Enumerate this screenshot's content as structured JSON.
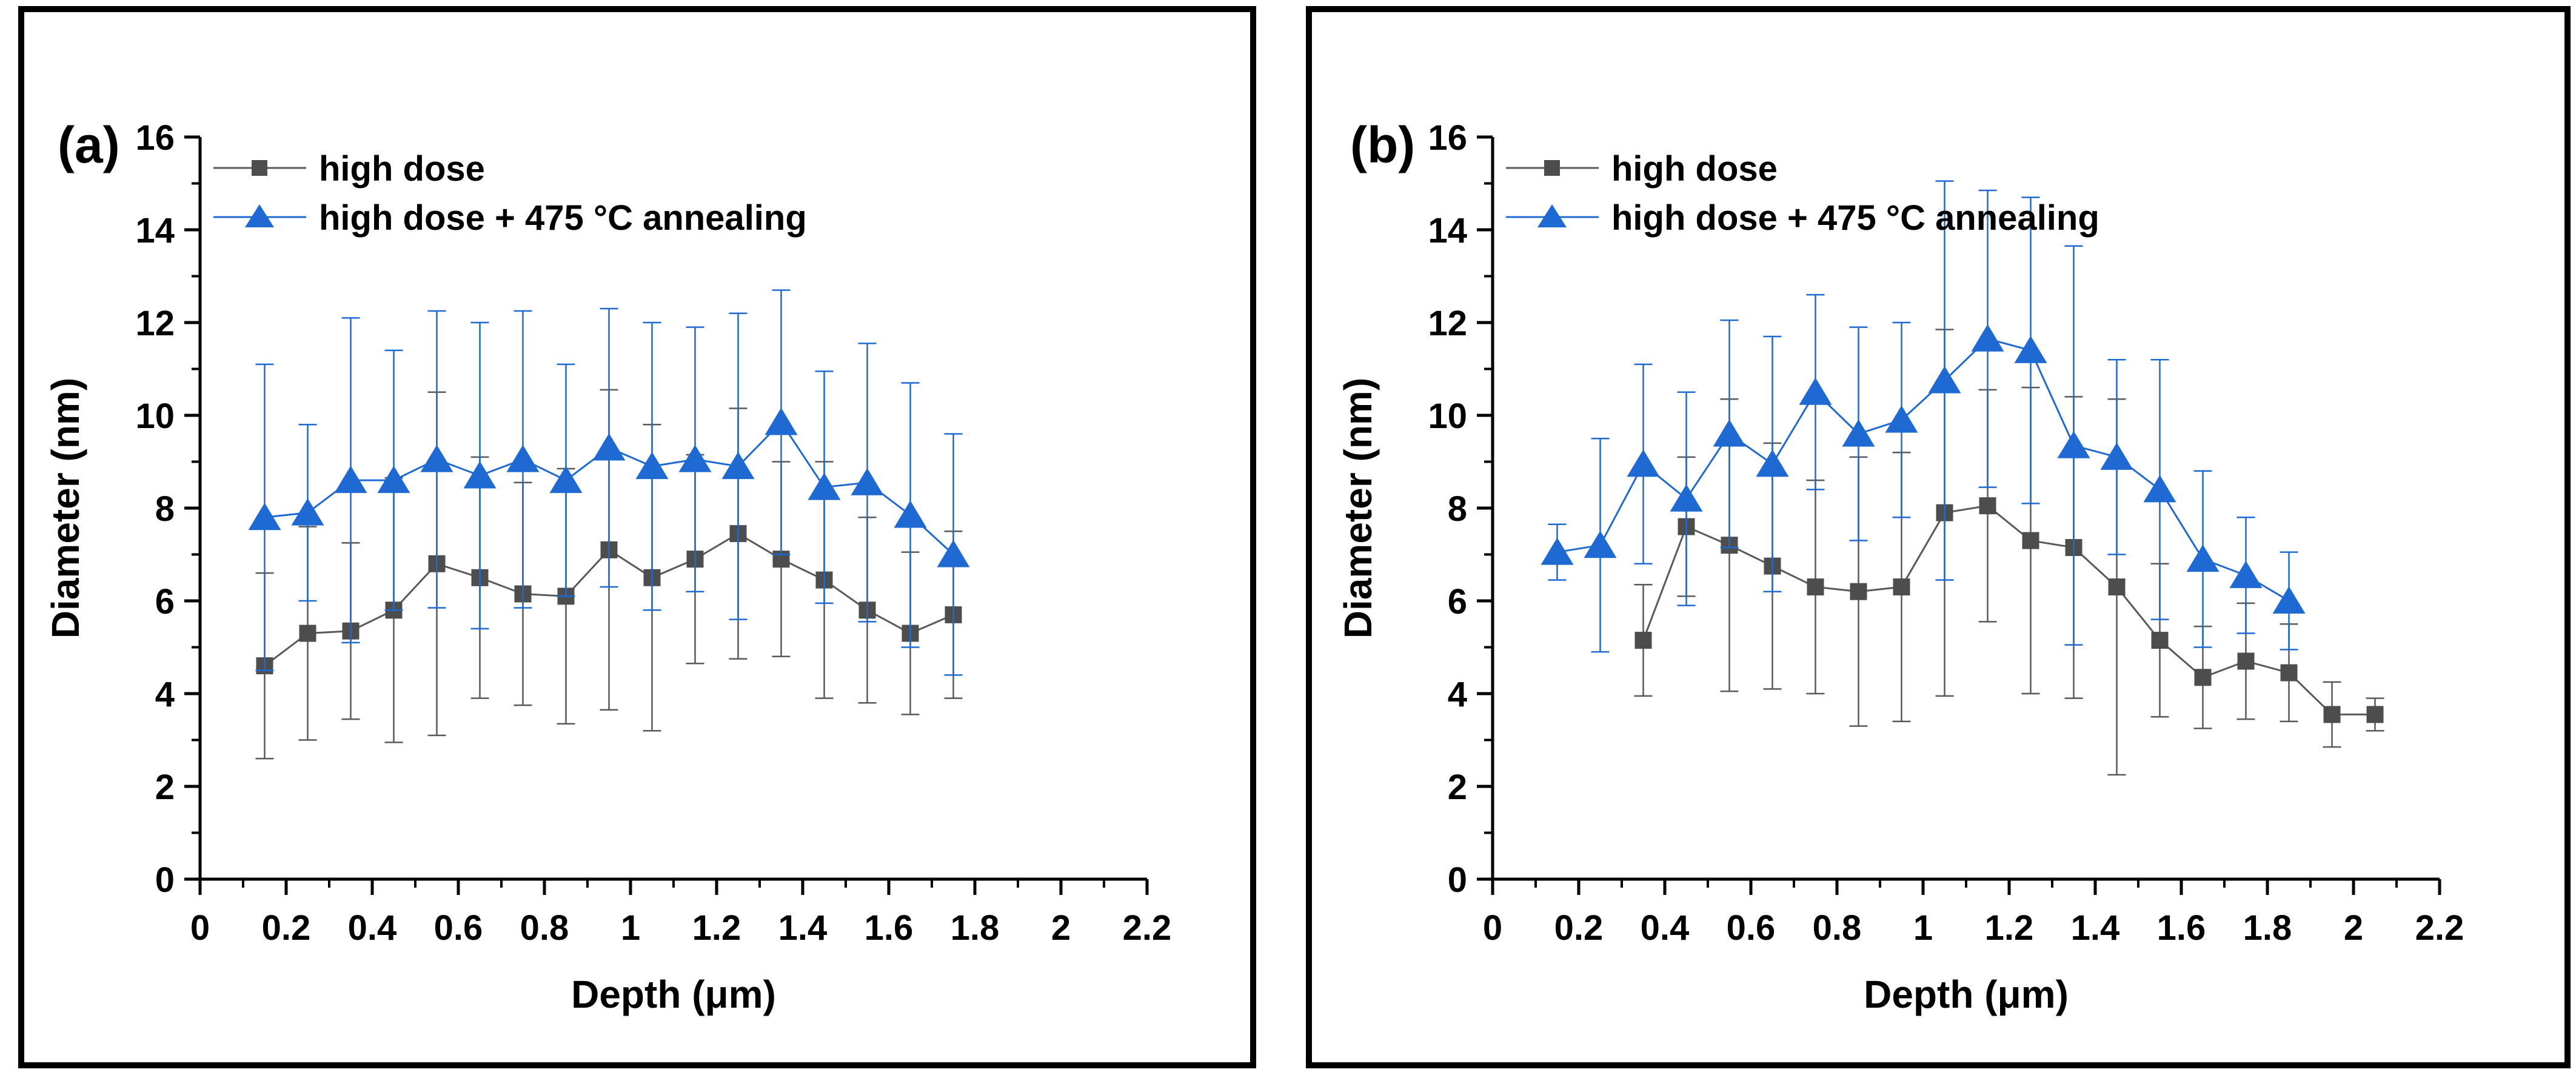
{
  "figure": {
    "background": "#ffffff",
    "border_color": "#000000"
  },
  "colors": {
    "high_dose": "#4d4d4d",
    "high_dose_line": "#595959",
    "annealed": "#1e6ad2",
    "axis": "#000000"
  },
  "chart_data": [
    {
      "type": "line",
      "panel_label": "(a)",
      "title": "",
      "xlabel": "Depth (μm)",
      "ylabel": "Diameter (nm)",
      "xlim": [
        0,
        2.2
      ],
      "ylim": [
        0,
        16
      ],
      "grid": false,
      "legend_position": "top-left",
      "x_major_ticks": [
        0,
        0.2,
        0.4,
        0.6,
        0.8,
        1,
        1.2,
        1.4,
        1.6,
        1.8,
        2,
        2.2
      ],
      "x_tick_labels": [
        "0",
        "0.2",
        "0.4",
        "0.6",
        "0.8",
        "1",
        "1.2",
        "1.4",
        "1.6",
        "1.8",
        "2",
        "2.2"
      ],
      "x_minor_ticks": [
        0.1,
        0.3,
        0.5,
        0.7,
        0.9,
        1.1,
        1.3,
        1.5,
        1.7,
        1.9,
        2.1
      ],
      "y_major_ticks": [
        0,
        2,
        4,
        6,
        8,
        10,
        12,
        14,
        16
      ],
      "y_tick_labels": [
        "0",
        "2",
        "4",
        "6",
        "8",
        "10",
        "12",
        "14",
        "16"
      ],
      "y_minor_ticks": [
        1,
        3,
        5,
        7,
        9,
        11,
        13,
        15
      ],
      "series": [
        {
          "name": "high dose",
          "marker": "square",
          "color": "#4d4d4d",
          "line_color": "#595959",
          "x": [
            0.15,
            0.25,
            0.35,
            0.45,
            0.55,
            0.65,
            0.75,
            0.85,
            0.95,
            1.05,
            1.15,
            1.25,
            1.35,
            1.45,
            1.55,
            1.65,
            1.75
          ],
          "y": [
            4.6,
            5.3,
            5.35,
            5.8,
            6.8,
            6.5,
            6.15,
            6.1,
            7.1,
            6.5,
            6.9,
            7.45,
            6.9,
            6.45,
            5.8,
            5.3,
            5.7
          ],
          "yerr": [
            2.0,
            2.3,
            1.9,
            2.85,
            3.7,
            2.6,
            2.4,
            2.75,
            3.45,
            3.3,
            2.25,
            2.7,
            2.1,
            2.55,
            2.0,
            1.75,
            1.8
          ]
        },
        {
          "name": "high dose + 475 °C annealing",
          "marker": "triangle",
          "color": "#1e6ad2",
          "line_color": "#1e6ad2",
          "x": [
            0.15,
            0.25,
            0.35,
            0.45,
            0.55,
            0.65,
            0.75,
            0.85,
            0.95,
            1.05,
            1.15,
            1.25,
            1.35,
            1.45,
            1.55,
            1.65,
            1.75
          ],
          "y": [
            7.8,
            7.9,
            8.6,
            8.6,
            9.05,
            8.7,
            9.05,
            8.6,
            9.3,
            8.9,
            9.05,
            8.9,
            9.85,
            8.45,
            8.55,
            7.85,
            7.0
          ],
          "yerr": [
            3.3,
            1.9,
            3.5,
            2.8,
            3.2,
            3.3,
            3.2,
            2.5,
            3.0,
            3.1,
            2.85,
            3.3,
            2.85,
            2.5,
            3.0,
            2.85,
            2.6
          ]
        }
      ]
    },
    {
      "type": "line",
      "panel_label": "(b)",
      "title": "",
      "xlabel": "Depth (μm)",
      "ylabel": "Diameter (nm)",
      "xlim": [
        0,
        2.2
      ],
      "ylim": [
        0,
        16
      ],
      "grid": false,
      "legend_position": "top-left",
      "x_major_ticks": [
        0,
        0.2,
        0.4,
        0.6,
        0.8,
        1,
        1.2,
        1.4,
        1.6,
        1.8,
        2,
        2.2
      ],
      "x_tick_labels": [
        "0",
        "0.2",
        "0.4",
        "0.6",
        "0.8",
        "1",
        "1.2",
        "1.4",
        "1.6",
        "1.8",
        "2",
        "2.2"
      ],
      "x_minor_ticks": [
        0.1,
        0.3,
        0.5,
        0.7,
        0.9,
        1.1,
        1.3,
        1.5,
        1.7,
        1.9,
        2.1
      ],
      "y_major_ticks": [
        0,
        2,
        4,
        6,
        8,
        10,
        12,
        14,
        16
      ],
      "y_tick_labels": [
        "0",
        "2",
        "4",
        "6",
        "8",
        "10",
        "12",
        "14",
        "16"
      ],
      "y_minor_ticks": [
        1,
        3,
        5,
        7,
        9,
        11,
        13,
        15
      ],
      "series": [
        {
          "name": "high dose",
          "marker": "square",
          "color": "#4d4d4d",
          "line_color": "#595959",
          "x": [
            0.35,
            0.45,
            0.55,
            0.65,
            0.75,
            0.85,
            0.95,
            1.05,
            1.15,
            1.25,
            1.35,
            1.45,
            1.55,
            1.65,
            1.75,
            1.85,
            1.95,
            2.05
          ],
          "y": [
            5.15,
            7.6,
            7.2,
            6.75,
            6.3,
            6.2,
            6.3,
            7.9,
            8.05,
            7.3,
            7.15,
            6.3,
            5.15,
            4.35,
            4.7,
            4.45,
            3.55,
            3.55
          ],
          "yerr": [
            1.2,
            1.5,
            3.15,
            2.65,
            2.3,
            2.9,
            2.9,
            3.95,
            2.5,
            3.3,
            3.25,
            4.05,
            1.65,
            1.1,
            1.25,
            1.05,
            0.7,
            0.35
          ]
        },
        {
          "name": "high dose + 475 °C annealing",
          "marker": "triangle",
          "color": "#1e6ad2",
          "line_color": "#1e6ad2",
          "x": [
            0.15,
            0.25,
            0.35,
            0.45,
            0.55,
            0.65,
            0.75,
            0.85,
            0.95,
            1.05,
            1.15,
            1.25,
            1.35,
            1.45,
            1.55,
            1.65,
            1.75,
            1.85
          ],
          "y": [
            7.05,
            7.2,
            8.95,
            8.2,
            9.6,
            8.95,
            10.5,
            9.6,
            9.9,
            10.75,
            11.65,
            11.4,
            9.35,
            9.1,
            8.4,
            6.9,
            6.55,
            6.0
          ],
          "yerr": [
            0.6,
            2.3,
            2.15,
            2.3,
            2.45,
            2.75,
            2.1,
            2.3,
            2.1,
            4.3,
            3.2,
            3.3,
            4.3,
            2.1,
            2.8,
            1.9,
            1.25,
            1.05
          ]
        }
      ]
    }
  ]
}
